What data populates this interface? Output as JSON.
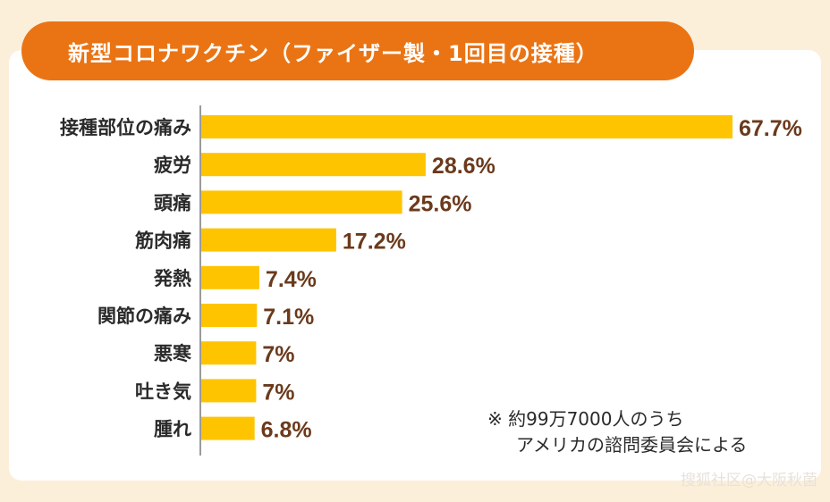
{
  "header": {
    "title": "新型コロナワクチン（ファイザー製・1回目の接種）"
  },
  "chart_data": {
    "type": "bar",
    "orientation": "horizontal",
    "title": "新型コロナワクチン（ファイザー製・1回目の接種）",
    "categories": [
      "接種部位の痛み",
      "疲労",
      "頭痛",
      "筋肉痛",
      "発熱",
      "関節の痛み",
      "悪寒",
      "吐き気",
      "腫れ"
    ],
    "values": [
      67.7,
      28.6,
      25.6,
      17.2,
      7.4,
      7.1,
      7,
      7,
      6.8
    ],
    "value_labels": [
      "67.7%",
      "28.6%",
      "25.6%",
      "17.2%",
      "7.4%",
      "7.1%",
      "7%",
      "7%",
      "6.8%"
    ],
    "unit": "%",
    "xlim": [
      0,
      67.7
    ],
    "xlabel": "",
    "ylabel": "",
    "bar_color": "#ffc400",
    "label_color": "#6b3a1c"
  },
  "note": {
    "line1": "※ 約99万7000人のうち",
    "line2": "アメリカの諮問委員会による"
  },
  "watermark": "搜狐社区@大阪秋菌",
  "colors": {
    "accent": "#ea7414",
    "background": "#fcefd9"
  }
}
